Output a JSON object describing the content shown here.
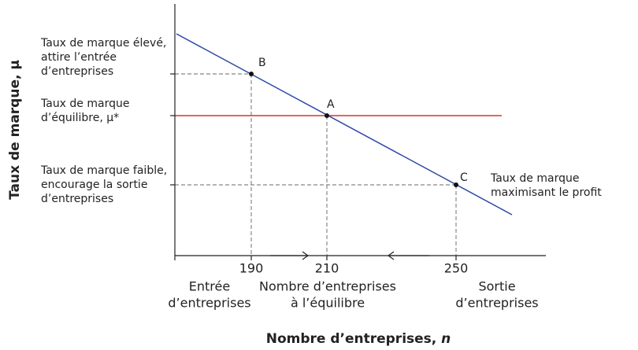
{
  "y_axis": {
    "label": "Taux de marque, μ"
  },
  "x_axis": {
    "label": "Nombre d’entreprises, ",
    "variable": "n"
  },
  "y_labels": [
    [
      "Taux de marque élevé,",
      "attire l’entrée",
      "d’entreprises"
    ],
    [
      "Taux de marque",
      "d’équilibre, μ*"
    ],
    [
      "Taux de marque faible,",
      "encourage la sortie",
      "d’entreprises"
    ]
  ],
  "x_ticks": [
    "190",
    "210",
    "250"
  ],
  "x_captions": [
    [
      "Entrée",
      "d’entreprises"
    ],
    [
      "Nombre d’entreprises",
      "à l’équilibre"
    ],
    [
      "Sortie",
      "d’entreprises"
    ]
  ],
  "points": [
    "B",
    "A",
    "C"
  ],
  "curve_label": [
    "Taux de marque",
    "maximisant le profit"
  ]
}
